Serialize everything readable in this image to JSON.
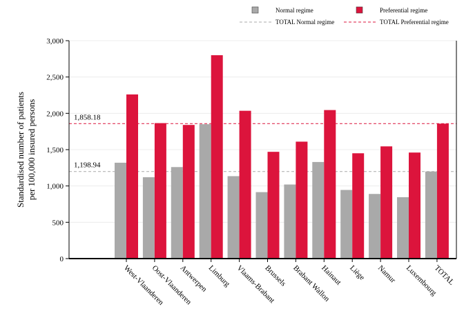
{
  "chart_data": {
    "type": "bar",
    "categories": [
      "West-Vlaanderen",
      "Oost-Vlaanderen",
      "Antwerpen",
      "Limburg",
      "Vlaams-Brabant",
      "Brussels",
      "Brabant Wallon",
      "Hainaut",
      "Liège",
      "Namur",
      "Luxembourg",
      "TOTAL"
    ],
    "series": [
      {
        "name": "Normal regime",
        "color": "#a9a9a9",
        "values": [
          1320,
          1120,
          1260,
          1850,
          1135,
          915,
          1020,
          1330,
          945,
          890,
          845,
          1199
        ]
      },
      {
        "name": "Preferential regime",
        "color": "#dc143c",
        "values": [
          2260,
          1865,
          1840,
          2800,
          2035,
          1470,
          1610,
          2045,
          1450,
          1545,
          1460,
          1858
        ]
      }
    ],
    "reference_lines": [
      {
        "name": "TOTAL Normal regime",
        "value": 1198.94,
        "label": "1,198.94",
        "color": "#a9a9a9",
        "style": "dashed"
      },
      {
        "name": "TOTAL Preferential regime",
        "value": 1858.18,
        "label": "1,858.18",
        "color": "#dc143c",
        "style": "dashed"
      }
    ],
    "xlabel": "",
    "ylabel": "Standardised number of patients\nper 100,000 insured persons",
    "ylim": [
      0,
      3000
    ],
    "yticks": [
      0,
      500,
      1000,
      1500,
      2000,
      2500,
      3000
    ],
    "ytick_labels": [
      "0",
      "500",
      "1,000",
      "1,500",
      "2,000",
      "2,500",
      "3,000"
    ],
    "grid": true,
    "legend_position": "top"
  }
}
